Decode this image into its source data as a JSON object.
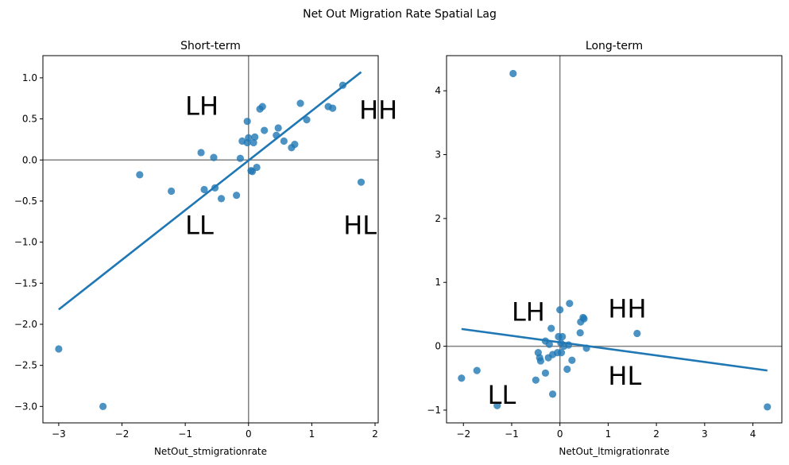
{
  "title": "Net Out Migration Rate Spatial Lag",
  "colors": {
    "points": "#1f77b4",
    "fit_line": "#1f77b4",
    "ref_lines": "#808080"
  },
  "chart_data": [
    {
      "type": "scatter",
      "title": "Short-term",
      "xlabel": "NetOut_stmigrationrate",
      "ylabel": "",
      "xlim": [
        -3.25,
        2.05
      ],
      "ylim": [
        -3.2,
        1.27
      ],
      "xticks": [
        -3,
        -2,
        -1,
        0,
        1,
        2
      ],
      "xtick_labels": [
        "−3",
        "−2",
        "−1",
        "0",
        "1",
        "2"
      ],
      "yticks": [
        1.0,
        0.5,
        0.0,
        -0.5,
        -1.0,
        -1.5,
        -2.0,
        -2.5,
        -3.0
      ],
      "ytick_labels": [
        "1.0",
        "0.5",
        "0.0",
        "−0.5",
        "−1.0",
        "−1.5",
        "−2.0",
        "−2.5",
        "−3.0"
      ],
      "grid": false,
      "reference_lines": {
        "x": 0,
        "y": 0
      },
      "points": [
        [
          -3.0,
          -2.3
        ],
        [
          -2.3,
          -3.0
        ],
        [
          -1.72,
          -0.18
        ],
        [
          -1.22,
          -0.38
        ],
        [
          -0.75,
          0.09
        ],
        [
          -0.7,
          -0.36
        ],
        [
          -0.55,
          0.03
        ],
        [
          -0.53,
          -0.34
        ],
        [
          -0.43,
          -0.47
        ],
        [
          -0.19,
          -0.43
        ],
        [
          -0.13,
          0.02
        ],
        [
          -0.1,
          0.23
        ],
        [
          -0.02,
          0.47
        ],
        [
          -0.02,
          0.21
        ],
        [
          0.0,
          0.27
        ],
        [
          0.04,
          -0.13
        ],
        [
          0.06,
          -0.14
        ],
        [
          0.08,
          0.21
        ],
        [
          0.1,
          0.28
        ],
        [
          0.13,
          -0.09
        ],
        [
          0.18,
          0.62
        ],
        [
          0.22,
          0.65
        ],
        [
          0.25,
          0.36
        ],
        [
          0.44,
          0.3
        ],
        [
          0.47,
          0.39
        ],
        [
          0.56,
          0.23
        ],
        [
          0.68,
          0.15
        ],
        [
          0.73,
          0.19
        ],
        [
          0.82,
          0.69
        ],
        [
          0.92,
          0.49
        ],
        [
          1.26,
          0.65
        ],
        [
          1.33,
          0.63
        ],
        [
          1.49,
          0.91
        ],
        [
          1.78,
          -0.27
        ]
      ],
      "fit_line": {
        "x": [
          -3.0,
          1.78
        ],
        "y": [
          -1.82,
          1.07
        ]
      },
      "quadrant_labels": [
        {
          "text": "LH",
          "x": -1.0,
          "y": 0.55
        },
        {
          "text": "HH",
          "x": 1.75,
          "y": 0.5
        },
        {
          "text": "LL",
          "x": -1.0,
          "y": -0.9
        },
        {
          "text": "HL",
          "x": 1.5,
          "y": -0.9
        }
      ]
    },
    {
      "type": "scatter",
      "title": "Long-term",
      "xlabel": "NetOut_ltmigrationrate",
      "ylabel": "",
      "xlim": [
        -2.35,
        4.6
      ],
      "ylim": [
        -1.2,
        4.55
      ],
      "xticks": [
        -2,
        -1,
        0,
        1,
        2,
        3,
        4
      ],
      "xtick_labels": [
        "−2",
        "−1",
        "0",
        "1",
        "2",
        "3",
        "4"
      ],
      "yticks": [
        4,
        3,
        2,
        1,
        0,
        -1
      ],
      "ytick_labels": [
        "4",
        "3",
        "2",
        "1",
        "0",
        "−1"
      ],
      "grid": false,
      "reference_lines": {
        "x": 0,
        "y": 0
      },
      "points": [
        [
          -0.97,
          4.27
        ],
        [
          -2.04,
          -0.5
        ],
        [
          -1.72,
          -0.38
        ],
        [
          -1.3,
          -0.93
        ],
        [
          -0.5,
          -0.53
        ],
        [
          -0.45,
          -0.1
        ],
        [
          -0.42,
          -0.18
        ],
        [
          -0.4,
          -0.23
        ],
        [
          -0.3,
          0.08
        ],
        [
          -0.3,
          -0.42
        ],
        [
          -0.24,
          -0.18
        ],
        [
          -0.22,
          0.03
        ],
        [
          -0.18,
          0.28
        ],
        [
          -0.15,
          -0.13
        ],
        [
          -0.15,
          -0.75
        ],
        [
          -0.05,
          -0.1
        ],
        [
          -0.03,
          0.15
        ],
        [
          0.0,
          0.57
        ],
        [
          0.02,
          0.05
        ],
        [
          0.03,
          -0.1
        ],
        [
          0.05,
          0.15
        ],
        [
          0.08,
          0.0
        ],
        [
          0.15,
          -0.36
        ],
        [
          0.18,
          0.02
        ],
        [
          0.2,
          0.67
        ],
        [
          0.25,
          -0.22
        ],
        [
          0.42,
          0.21
        ],
        [
          0.43,
          0.38
        ],
        [
          0.48,
          0.45
        ],
        [
          0.5,
          0.43
        ],
        [
          0.55,
          -0.03
        ],
        [
          1.6,
          0.2
        ],
        [
          4.3,
          -0.95
        ]
      ],
      "fit_line": {
        "x": [
          -2.04,
          4.3
        ],
        "y": [
          0.27,
          -0.38
        ]
      },
      "quadrant_labels": [
        {
          "text": "LH",
          "x": -1.0,
          "y": 0.4
        },
        {
          "text": "HH",
          "x": 1.0,
          "y": 0.45
        },
        {
          "text": "LL",
          "x": -1.5,
          "y": -0.9
        },
        {
          "text": "HL",
          "x": 1.0,
          "y": -0.6
        }
      ]
    }
  ]
}
